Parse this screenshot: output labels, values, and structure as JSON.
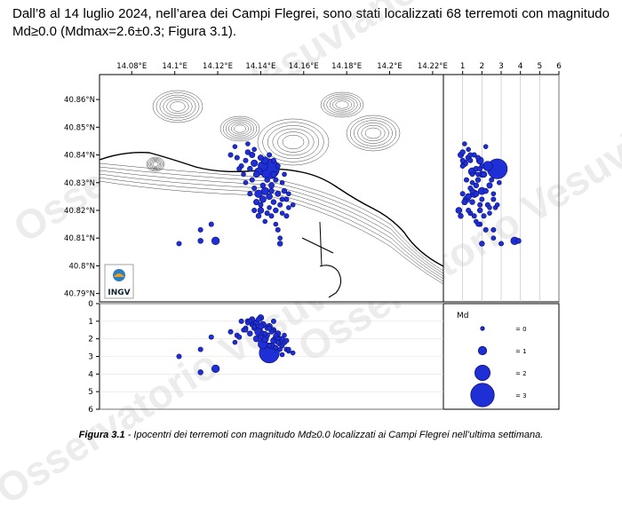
{
  "document": {
    "paragraph": "Dall’8 al 14 luglio 2024, nell’area dei Campi Flegrei, sono stati localizzati 68 terremoti con magnitudo Md≥0.0 (Mdmax=2.6±0.3; Figura 3.1).",
    "caption_label": "Figura 3.1",
    "caption_text": " - Ipocentri dei terremoti con magnitudo Md≥0.0 localizzati ai Campi Flegrei nell’ultima settimana."
  },
  "watermark": {
    "text": "Osservatorio Vesuviano"
  },
  "logo": {
    "text": "INGV"
  },
  "map": {
    "lon_ticks": [
      "14.08°E",
      "14.1°E",
      "14.12°E",
      "14.14°E",
      "14.16°E",
      "14.18°E",
      "14.2°E",
      "14.22°E"
    ],
    "lat_ticks": [
      "40.86°N",
      "40.85°N",
      "40.84°N",
      "40.83°N",
      "40.82°N",
      "40.81°N",
      "40.8°N",
      "40.79°N"
    ]
  },
  "depth_panel": {
    "ticks": [
      "0",
      "1",
      "2",
      "3",
      "4",
      "5",
      "6"
    ]
  },
  "depth_top_axis": {
    "ticks": [
      "1",
      "2",
      "3",
      "4",
      "5",
      "6"
    ]
  },
  "legend": {
    "title": "Md",
    "items": [
      {
        "label": "= 0",
        "md": 0
      },
      {
        "label": "= 1",
        "md": 1
      },
      {
        "label": "= 2",
        "md": 2
      },
      {
        "label": "= 3",
        "md": 3
      }
    ]
  },
  "colors": {
    "event_fill": "#1f2fd6",
    "event_edge": "#0b1070",
    "contour": "#222222"
  },
  "chart_data": {
    "type": "scatter",
    "xlim_lon": [
      14.065,
      14.225
    ],
    "ylim_lat": [
      40.787,
      40.869
    ],
    "zlim_depth_km": [
      0,
      6
    ],
    "events": [
      {
        "lon": 14.144,
        "lat": 40.835,
        "depth": 2.8,
        "md": 2.6
      },
      {
        "lon": 14.141,
        "lat": 40.836,
        "depth": 2.3,
        "md": 1.2
      },
      {
        "lon": 14.139,
        "lat": 40.834,
        "depth": 1.5,
        "md": 0.9
      },
      {
        "lon": 14.142,
        "lat": 40.838,
        "depth": 1.9,
        "md": 0.8
      },
      {
        "lon": 14.137,
        "lat": 40.837,
        "depth": 1.1,
        "md": 0.7
      },
      {
        "lon": 14.14,
        "lat": 40.839,
        "depth": 1.3,
        "md": 0.5
      },
      {
        "lon": 14.138,
        "lat": 40.833,
        "depth": 2.0,
        "md": 0.6
      },
      {
        "lon": 14.135,
        "lat": 40.835,
        "depth": 1.7,
        "md": 0.4
      },
      {
        "lon": 14.136,
        "lat": 40.84,
        "depth": 0.9,
        "md": 0.5
      },
      {
        "lon": 14.133,
        "lat": 40.838,
        "depth": 1.4,
        "md": 0.3
      },
      {
        "lon": 14.146,
        "lat": 40.833,
        "depth": 2.1,
        "md": 0.6
      },
      {
        "lon": 14.143,
        "lat": 40.831,
        "depth": 1.8,
        "md": 0.4
      },
      {
        "lon": 14.131,
        "lat": 40.836,
        "depth": 1.0,
        "md": 0.3
      },
      {
        "lon": 14.145,
        "lat": 40.829,
        "depth": 2.4,
        "md": 0.5
      },
      {
        "lon": 14.142,
        "lat": 40.827,
        "depth": 2.0,
        "md": 0.8
      },
      {
        "lon": 14.139,
        "lat": 40.826,
        "depth": 1.6,
        "md": 0.9
      },
      {
        "lon": 14.144,
        "lat": 40.825,
        "depth": 1.3,
        "md": 0.6
      },
      {
        "lon": 14.148,
        "lat": 40.826,
        "depth": 1.7,
        "md": 0.5
      },
      {
        "lon": 14.151,
        "lat": 40.827,
        "depth": 2.2,
        "md": 0.4
      },
      {
        "lon": 14.152,
        "lat": 40.824,
        "depth": 2.6,
        "md": 0.3
      },
      {
        "lon": 14.141,
        "lat": 40.824,
        "depth": 1.2,
        "md": 0.7
      },
      {
        "lon": 14.146,
        "lat": 40.823,
        "depth": 1.5,
        "md": 0.4
      },
      {
        "lon": 14.149,
        "lat": 40.822,
        "depth": 2.3,
        "md": 0.3
      },
      {
        "lon": 14.153,
        "lat": 40.821,
        "depth": 2.7,
        "md": 0.2
      },
      {
        "lon": 14.138,
        "lat": 40.823,
        "depth": 1.1,
        "md": 0.5
      },
      {
        "lon": 14.14,
        "lat": 40.82,
        "depth": 0.8,
        "md": 0.6
      },
      {
        "lon": 14.143,
        "lat": 40.819,
        "depth": 1.4,
        "md": 0.3
      },
      {
        "lon": 14.147,
        "lat": 40.82,
        "depth": 1.9,
        "md": 0.4
      },
      {
        "lon": 14.15,
        "lat": 40.819,
        "depth": 2.4,
        "md": 0.2
      },
      {
        "lon": 14.145,
        "lat": 40.818,
        "depth": 1.6,
        "md": 0.3
      },
      {
        "lon": 14.139,
        "lat": 40.818,
        "depth": 0.9,
        "md": 0.4
      },
      {
        "lon": 14.136,
        "lat": 40.831,
        "depth": 1.2,
        "md": 0.3
      },
      {
        "lon": 14.132,
        "lat": 40.833,
        "depth": 1.5,
        "md": 0.2
      },
      {
        "lon": 14.129,
        "lat": 40.839,
        "depth": 1.8,
        "md": 0.3
      },
      {
        "lon": 14.134,
        "lat": 40.841,
        "depth": 1.0,
        "md": 0.4
      },
      {
        "lon": 14.137,
        "lat": 40.842,
        "depth": 1.3,
        "md": 0.2
      },
      {
        "lon": 14.148,
        "lat": 40.836,
        "depth": 2.0,
        "md": 0.3
      },
      {
        "lon": 14.147,
        "lat": 40.831,
        "depth": 2.5,
        "md": 0.3
      },
      {
        "lon": 14.15,
        "lat": 40.83,
        "depth": 2.9,
        "md": 0.2
      },
      {
        "lon": 14.141,
        "lat": 40.829,
        "depth": 1.7,
        "md": 0.4
      },
      {
        "lon": 14.137,
        "lat": 40.828,
        "depth": 1.4,
        "md": 0.3
      },
      {
        "lon": 14.152,
        "lat": 40.818,
        "depth": 2.1,
        "md": 0.3
      },
      {
        "lon": 14.147,
        "lat": 40.815,
        "depth": 1.8,
        "md": 0.2
      },
      {
        "lon": 14.148,
        "lat": 40.813,
        "depth": 2.2,
        "md": 0.3
      },
      {
        "lon": 14.149,
        "lat": 40.81,
        "depth": 2.6,
        "md": 0.2
      },
      {
        "lon": 14.149,
        "lat": 40.808,
        "depth": 2.0,
        "md": 0.4
      },
      {
        "lon": 14.126,
        "lat": 40.84,
        "depth": 1.6,
        "md": 0.3
      },
      {
        "lon": 14.128,
        "lat": 40.843,
        "depth": 2.2,
        "md": 0.2
      },
      {
        "lon": 14.134,
        "lat": 40.844,
        "depth": 1.1,
        "md": 0.2
      },
      {
        "lon": 14.155,
        "lat": 40.822,
        "depth": 2.8,
        "md": 0.2
      },
      {
        "lon": 14.13,
        "lat": 40.835,
        "depth": 1.9,
        "md": 0.3
      },
      {
        "lon": 14.144,
        "lat": 40.84,
        "depth": 1.4,
        "md": 0.3
      },
      {
        "lon": 14.146,
        "lat": 40.838,
        "depth": 1.0,
        "md": 0.3
      },
      {
        "lon": 14.151,
        "lat": 40.833,
        "depth": 1.8,
        "md": 0.2
      },
      {
        "lon": 14.133,
        "lat": 40.83,
        "depth": 1.5,
        "md": 0.2
      },
      {
        "lon": 14.14,
        "lat": 40.822,
        "depth": 1.9,
        "md": 0.3
      },
      {
        "lon": 14.144,
        "lat": 40.821,
        "depth": 2.4,
        "md": 0.2
      },
      {
        "lon": 14.137,
        "lat": 40.82,
        "depth": 1.3,
        "md": 0.3
      },
      {
        "lon": 14.15,
        "lat": 40.824,
        "depth": 2.0,
        "md": 0.3
      },
      {
        "lon": 14.153,
        "lat": 40.826,
        "depth": 2.6,
        "md": 0.2
      },
      {
        "lon": 14.145,
        "lat": 40.827,
        "depth": 1.5,
        "md": 0.4
      },
      {
        "lon": 14.135,
        "lat": 40.826,
        "depth": 1.0,
        "md": 0.3
      },
      {
        "lon": 14.142,
        "lat": 40.816,
        "depth": 1.7,
        "md": 0.2
      },
      {
        "lon": 14.119,
        "lat": 40.809,
        "depth": 3.7,
        "md": 0.9
      },
      {
        "lon": 14.112,
        "lat": 40.809,
        "depth": 3.9,
        "md": 0.4
      },
      {
        "lon": 14.102,
        "lat": 40.808,
        "depth": 3.0,
        "md": 0.3
      },
      {
        "lon": 14.112,
        "lat": 40.813,
        "depth": 2.6,
        "md": 0.3
      },
      {
        "lon": 14.117,
        "lat": 40.815,
        "depth": 1.9,
        "md": 0.3
      }
    ]
  }
}
